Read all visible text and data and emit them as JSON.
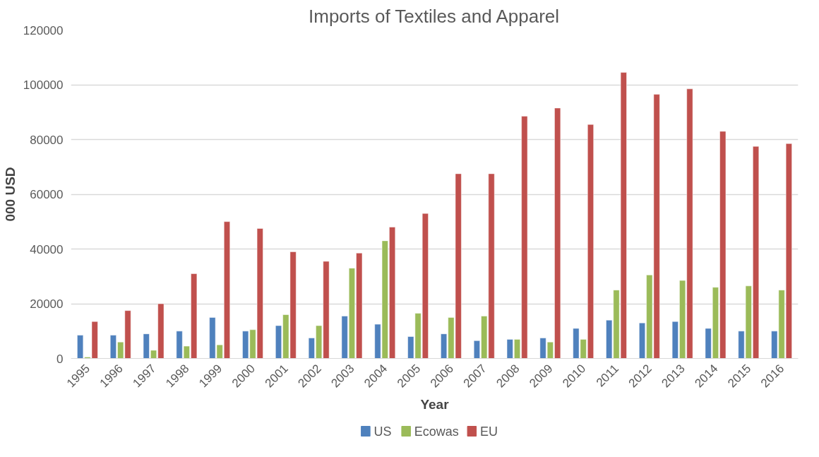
{
  "chart_data": {
    "type": "bar",
    "title": "Imports of Textiles and Apparel",
    "xlabel": "Year",
    "ylabel": "000 USD",
    "categories": [
      "1995",
      "1996",
      "1997",
      "1998",
      "1999",
      "2000",
      "2001",
      "2002",
      "2003",
      "2004",
      "2005",
      "2006",
      "2007",
      "2008",
      "2009",
      "2010",
      "2011",
      "2012",
      "2013",
      "2014",
      "2015",
      "2016"
    ],
    "series": [
      {
        "name": "US",
        "color": "#4f81bd",
        "values": [
          8500,
          8500,
          9000,
          10000,
          15000,
          10000,
          12000,
          7500,
          15500,
          12500,
          8000,
          9000,
          6500,
          7000,
          7500,
          11000,
          14000,
          13000,
          13500,
          11000,
          10000,
          10000
        ]
      },
      {
        "name": "Ecowas",
        "color": "#9bbb59",
        "values": [
          500,
          6000,
          3000,
          4500,
          5000,
          10500,
          16000,
          12000,
          33000,
          43000,
          16500,
          15000,
          15500,
          7000,
          6000,
          7000,
          25000,
          30500,
          28500,
          26000,
          26500,
          25000
        ]
      },
      {
        "name": "EU",
        "color": "#c0504d",
        "values": [
          13500,
          17500,
          20000,
          31000,
          50000,
          47500,
          39000,
          35500,
          38500,
          48000,
          53000,
          67500,
          67500,
          88500,
          91500,
          85500,
          104500,
          96500,
          98500,
          83000,
          77500,
          78500
        ]
      }
    ],
    "ylim": [
      0,
      120000
    ],
    "yticks": [
      0,
      20000,
      40000,
      60000,
      80000,
      100000,
      120000
    ],
    "grid": "y",
    "legend": "bottom"
  }
}
